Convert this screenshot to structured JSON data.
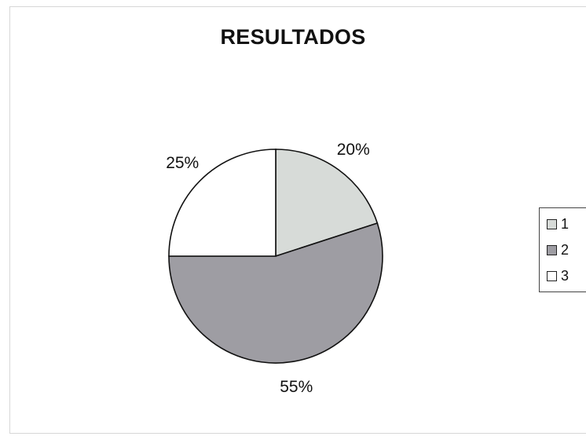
{
  "chart_data": {
    "type": "pie",
    "title": "RESULTADOS",
    "categories": [
      "1",
      "2",
      "3"
    ],
    "values": [
      20,
      55,
      25
    ],
    "labels": [
      "20%",
      "55%",
      "25%"
    ],
    "colors": [
      "#d7dbd8",
      "#9e9da3",
      "#ffffff"
    ],
    "start_angle_deg": 0,
    "direction": "clockwise",
    "legend_position": "right"
  }
}
